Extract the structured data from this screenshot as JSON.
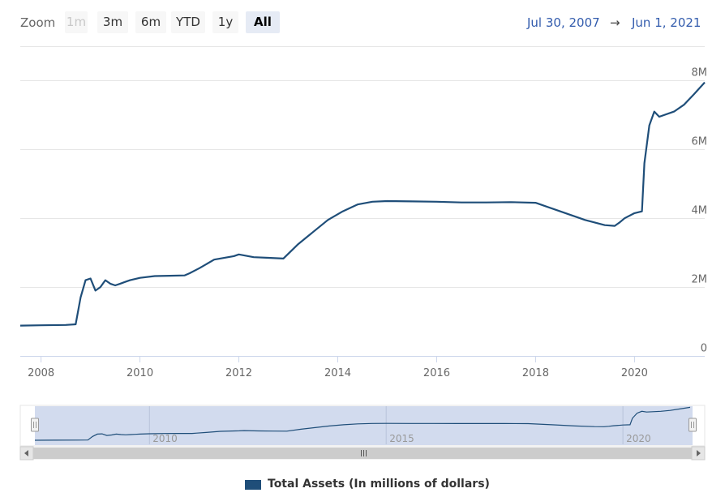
{
  "toolbar": {
    "zoom_label": "Zoom",
    "ranges": [
      {
        "label": "1m",
        "state": "disabled"
      },
      {
        "label": "3m",
        "state": "normal"
      },
      {
        "label": "6m",
        "state": "normal"
      },
      {
        "label": "YTD",
        "state": "normal"
      },
      {
        "label": "1y",
        "state": "normal"
      },
      {
        "label": "All",
        "state": "selected"
      }
    ],
    "from_date": "Jul 30, 2007",
    "arrow": "→",
    "to_date": "Jun 1, 2021"
  },
  "colors": {
    "series": "#1f4e79",
    "navigator_mask": "#d2dbee",
    "grid": "#e6e6e6",
    "date_link": "#335cad"
  },
  "chart_data": {
    "type": "line",
    "title": "",
    "xlabel": "",
    "ylabel": "",
    "x_range": [
      2007.58,
      2021.42
    ],
    "ylim": [
      0,
      9000000
    ],
    "x_ticks": [
      "2008",
      "2010",
      "2012",
      "2014",
      "2016",
      "2018",
      "2020"
    ],
    "y_ticks": [
      "0",
      "2M",
      "4M",
      "6M",
      "8M"
    ],
    "navigator_ticks": [
      "2010",
      "2015",
      "2020"
    ],
    "grid": true,
    "legend_position": "bottom-center",
    "series": [
      {
        "name": "Total Assets (In millions of dollars)",
        "x": [
          2007.58,
          2008.0,
          2008.5,
          2008.7,
          2008.8,
          2008.9,
          2009.0,
          2009.1,
          2009.2,
          2009.3,
          2009.4,
          2009.5,
          2009.6,
          2009.7,
          2009.8,
          2010.0,
          2010.3,
          2010.6,
          2010.9,
          2011.0,
          2011.2,
          2011.5,
          2011.9,
          2012.0,
          2012.3,
          2012.6,
          2012.9,
          2013.2,
          2013.5,
          2013.8,
          2014.1,
          2014.4,
          2014.7,
          2015.0,
          2015.5,
          2016.0,
          2016.5,
          2017.0,
          2017.5,
          2018.0,
          2018.5,
          2019.0,
          2019.4,
          2019.6,
          2019.7,
          2019.8,
          2020.0,
          2020.15,
          2020.2,
          2020.3,
          2020.4,
          2020.5,
          2020.8,
          2021.0,
          2021.2,
          2021.42
        ],
        "values": [
          880000,
          890000,
          900000,
          920000,
          1700000,
          2200000,
          2250000,
          1900000,
          2000000,
          2200000,
          2100000,
          2050000,
          2100000,
          2150000,
          2200000,
          2270000,
          2320000,
          2330000,
          2340000,
          2400000,
          2550000,
          2800000,
          2900000,
          2950000,
          2870000,
          2850000,
          2830000,
          3250000,
          3600000,
          3950000,
          4200000,
          4400000,
          4480000,
          4500000,
          4490000,
          4480000,
          4460000,
          4460000,
          4470000,
          4450000,
          4200000,
          3950000,
          3800000,
          3780000,
          3880000,
          4000000,
          4150000,
          4200000,
          5600000,
          6700000,
          7100000,
          6950000,
          7100000,
          7300000,
          7600000,
          7950000
        ]
      }
    ]
  }
}
